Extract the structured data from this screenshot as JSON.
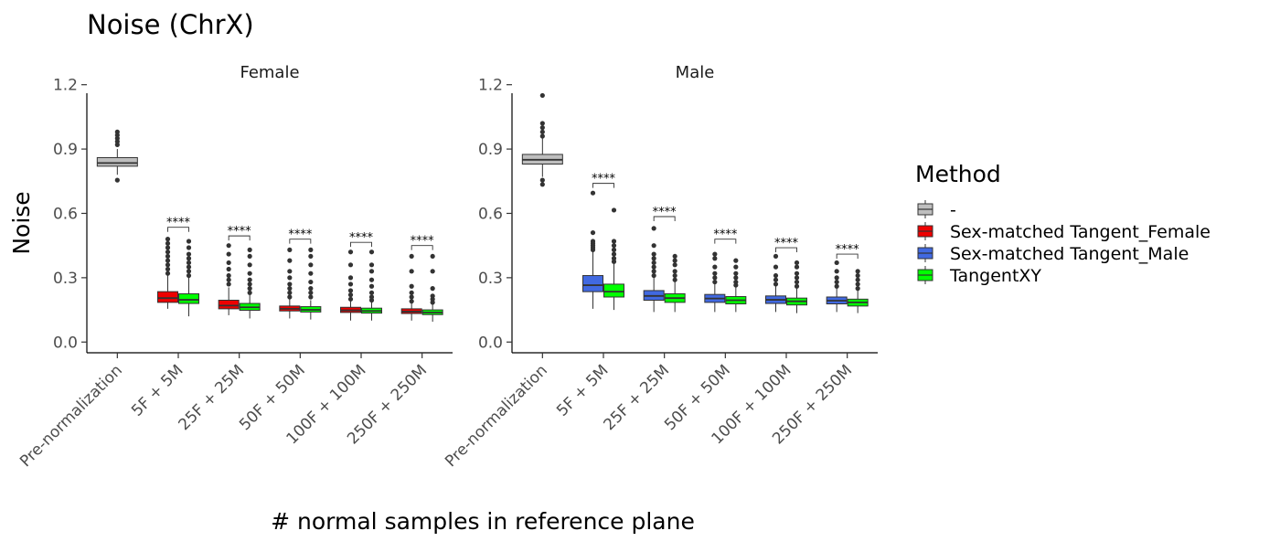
{
  "chart_data": {
    "type": "box",
    "title": "Noise (ChrX)",
    "xlabel": "# normal samples in reference plane",
    "ylabel": "Noise",
    "ylim": [
      -0.05,
      1.22
    ],
    "yticks": [
      "0.0",
      "0.3",
      "0.6",
      "0.9",
      "1.2"
    ],
    "ytick_values": [
      0.0,
      0.3,
      0.6,
      0.9,
      1.2
    ],
    "categories": [
      "Pre-normalization",
      "5F + 5M",
      "25F + 25M",
      "50F + 50M",
      "100F + 100M",
      "250F + 250M"
    ],
    "grid": false,
    "legend": {
      "title": "Method",
      "placement": "right",
      "entries": [
        {
          "name": "-",
          "color": "#bebebe"
        },
        {
          "name": "Sex-matched Tangent_Female",
          "color": "#ee0000"
        },
        {
          "name": "Sex-matched Tangent_Male",
          "color": "#4169e1"
        },
        {
          "name": "TangentXY",
          "color": "#00ff00"
        }
      ]
    },
    "significance_label": "****",
    "panels": [
      {
        "name": "Female",
        "groups": [
          {
            "category": 0,
            "method": 0,
            "q1": 0.82,
            "median": 0.835,
            "q3": 0.86,
            "whisker_low": 0.78,
            "whisker_high": 0.9,
            "outliers": [
              0.755,
              0.92,
              0.935,
              0.95,
              0.965,
              0.98
            ]
          },
          {
            "category": 1,
            "method": 1,
            "q1": 0.185,
            "median": 0.205,
            "q3": 0.235,
            "whisker_low": 0.155,
            "whisker_high": 0.31,
            "outliers": [
              0.32,
              0.34,
              0.36,
              0.38,
              0.4,
              0.42,
              0.44,
              0.46,
              0.48
            ]
          },
          {
            "category": 1,
            "method": 3,
            "q1": 0.18,
            "median": 0.197,
            "q3": 0.225,
            "whisker_low": 0.12,
            "whisker_high": 0.3,
            "outliers": [
              0.31,
              0.33,
              0.35,
              0.37,
              0.39,
              0.41,
              0.44,
              0.47
            ]
          },
          {
            "category": 2,
            "method": 1,
            "q1": 0.155,
            "median": 0.17,
            "q3": 0.195,
            "whisker_low": 0.125,
            "whisker_high": 0.255,
            "outliers": [
              0.27,
              0.29,
              0.31,
              0.34,
              0.37,
              0.41,
              0.45
            ]
          },
          {
            "category": 2,
            "method": 3,
            "q1": 0.148,
            "median": 0.162,
            "q3": 0.18,
            "whisker_low": 0.11,
            "whisker_high": 0.22,
            "outliers": [
              0.23,
              0.25,
              0.27,
              0.29,
              0.32,
              0.36,
              0.4,
              0.43
            ]
          },
          {
            "category": 3,
            "method": 1,
            "q1": 0.145,
            "median": 0.155,
            "q3": 0.168,
            "whisker_low": 0.11,
            "whisker_high": 0.2,
            "outliers": [
              0.21,
              0.23,
              0.25,
              0.27,
              0.3,
              0.33,
              0.38,
              0.43
            ]
          },
          {
            "category": 3,
            "method": 3,
            "q1": 0.14,
            "median": 0.15,
            "q3": 0.165,
            "whisker_low": 0.105,
            "whisker_high": 0.195,
            "outliers": [
              0.21,
              0.23,
              0.25,
              0.28,
              0.32,
              0.36,
              0.4,
              0.43
            ]
          },
          {
            "category": 4,
            "method": 1,
            "q1": 0.138,
            "median": 0.148,
            "q3": 0.162,
            "whisker_low": 0.1,
            "whisker_high": 0.19,
            "outliers": [
              0.2,
              0.22,
              0.24,
              0.27,
              0.3,
              0.36,
              0.42
            ]
          },
          {
            "category": 4,
            "method": 3,
            "q1": 0.135,
            "median": 0.145,
            "q3": 0.158,
            "whisker_low": 0.1,
            "whisker_high": 0.185,
            "outliers": [
              0.195,
              0.21,
              0.23,
              0.26,
              0.29,
              0.33,
              0.36,
              0.42
            ]
          },
          {
            "category": 5,
            "method": 1,
            "q1": 0.133,
            "median": 0.142,
            "q3": 0.155,
            "whisker_low": 0.1,
            "whisker_high": 0.18,
            "outliers": [
              0.19,
              0.21,
              0.23,
              0.26,
              0.33,
              0.4
            ]
          },
          {
            "category": 5,
            "method": 3,
            "q1": 0.128,
            "median": 0.138,
            "q3": 0.15,
            "whisker_low": 0.095,
            "whisker_high": 0.175,
            "outliers": [
              0.185,
              0.2,
              0.215,
              0.25,
              0.33,
              0.4
            ]
          }
        ],
        "significance_brackets": [
          {
            "category": 1,
            "y": 0.535
          },
          {
            "category": 2,
            "y": 0.495
          },
          {
            "category": 3,
            "y": 0.48
          },
          {
            "category": 4,
            "y": 0.465
          },
          {
            "category": 5,
            "y": 0.45
          }
        ]
      },
      {
        "name": "Male",
        "groups": [
          {
            "category": 0,
            "method": 0,
            "q1": 0.83,
            "median": 0.85,
            "q3": 0.875,
            "whisker_low": 0.77,
            "whisker_high": 0.95,
            "outliers": [
              0.735,
              0.755,
              0.96,
              0.98,
              1.0,
              1.02,
              1.15
            ]
          },
          {
            "category": 1,
            "method": 2,
            "q1": 0.235,
            "median": 0.265,
            "q3": 0.31,
            "whisker_low": 0.155,
            "whisker_high": 0.42,
            "outliers": [
              0.43,
              0.44,
              0.45,
              0.46,
              0.47,
              0.51,
              0.695
            ]
          },
          {
            "category": 1,
            "method": 3,
            "q1": 0.21,
            "median": 0.235,
            "q3": 0.27,
            "whisker_low": 0.15,
            "whisker_high": 0.365,
            "outliers": [
              0.375,
              0.39,
              0.41,
              0.43,
              0.45,
              0.47,
              0.615
            ]
          },
          {
            "category": 2,
            "method": 2,
            "q1": 0.195,
            "median": 0.215,
            "q3": 0.24,
            "whisker_low": 0.14,
            "whisker_high": 0.3,
            "outliers": [
              0.31,
              0.33,
              0.35,
              0.37,
              0.39,
              0.41,
              0.45,
              0.53
            ]
          },
          {
            "category": 2,
            "method": 3,
            "q1": 0.185,
            "median": 0.205,
            "q3": 0.225,
            "whisker_low": 0.14,
            "whisker_high": 0.28,
            "outliers": [
              0.29,
              0.31,
              0.33,
              0.36,
              0.38,
              0.4
            ]
          },
          {
            "category": 3,
            "method": 2,
            "q1": 0.185,
            "median": 0.203,
            "q3": 0.222,
            "whisker_low": 0.14,
            "whisker_high": 0.27,
            "outliers": [
              0.28,
              0.3,
              0.32,
              0.35,
              0.39,
              0.41
            ]
          },
          {
            "category": 3,
            "method": 3,
            "q1": 0.178,
            "median": 0.195,
            "q3": 0.212,
            "whisker_low": 0.14,
            "whisker_high": 0.255,
            "outliers": [
              0.265,
              0.28,
              0.3,
              0.32,
              0.35,
              0.38
            ]
          },
          {
            "category": 4,
            "method": 2,
            "q1": 0.18,
            "median": 0.197,
            "q3": 0.215,
            "whisker_low": 0.14,
            "whisker_high": 0.26,
            "outliers": [
              0.27,
              0.29,
              0.31,
              0.35,
              0.4
            ]
          },
          {
            "category": 4,
            "method": 3,
            "q1": 0.173,
            "median": 0.19,
            "q3": 0.205,
            "whisker_low": 0.135,
            "whisker_high": 0.25,
            "outliers": [
              0.26,
              0.28,
              0.3,
              0.32,
              0.35,
              0.37
            ]
          },
          {
            "category": 5,
            "method": 2,
            "q1": 0.178,
            "median": 0.193,
            "q3": 0.21,
            "whisker_low": 0.14,
            "whisker_high": 0.25,
            "outliers": [
              0.26,
              0.28,
              0.3,
              0.33,
              0.37
            ]
          },
          {
            "category": 5,
            "method": 3,
            "q1": 0.168,
            "median": 0.185,
            "q3": 0.2,
            "whisker_low": 0.135,
            "whisker_high": 0.24,
            "outliers": [
              0.25,
              0.27,
              0.29,
              0.31,
              0.33
            ]
          }
        ],
        "significance_brackets": [
          {
            "category": 1,
            "y": 0.74
          },
          {
            "category": 2,
            "y": 0.585
          },
          {
            "category": 3,
            "y": 0.48
          },
          {
            "category": 4,
            "y": 0.44
          },
          {
            "category": 5,
            "y": 0.41
          }
        ]
      }
    ]
  }
}
